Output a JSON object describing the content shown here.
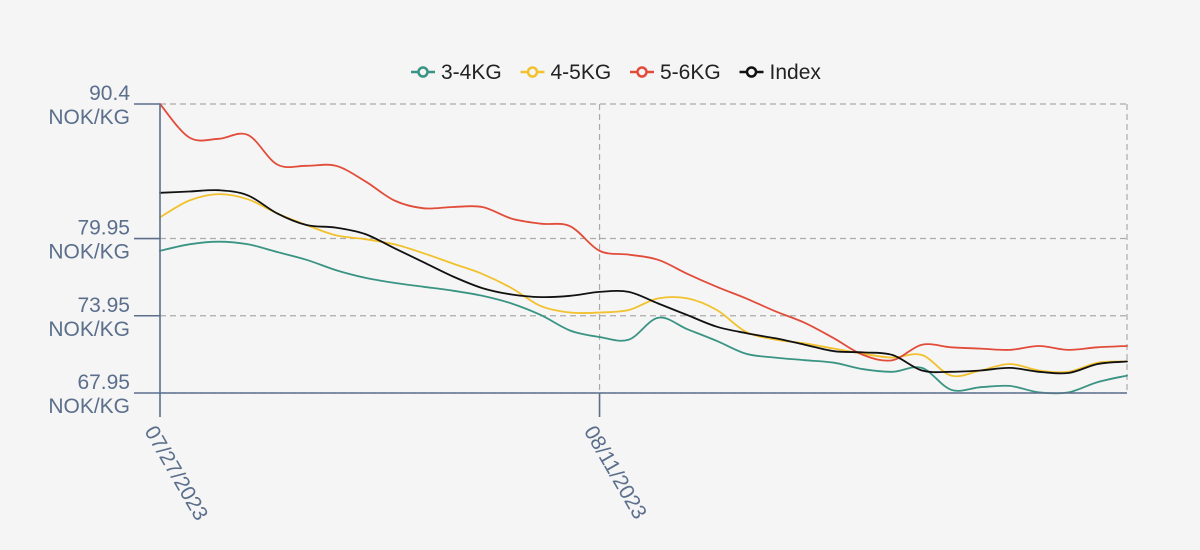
{
  "chart_data": {
    "type": "line",
    "x": [
      "07/27/2023",
      "07/28/2023",
      "07/29/2023",
      "07/30/2023",
      "07/31/2023",
      "08/01/2023",
      "08/02/2023",
      "08/03/2023",
      "08/04/2023",
      "08/05/2023",
      "08/06/2023",
      "08/07/2023",
      "08/08/2023",
      "08/09/2023",
      "08/10/2023",
      "08/11/2023",
      "08/12/2023",
      "08/13/2023",
      "08/14/2023",
      "08/15/2023",
      "08/16/2023",
      "08/17/2023",
      "08/18/2023",
      "08/19/2023",
      "08/20/2023",
      "08/21/2023",
      "08/22/2023",
      "08/23/2023",
      "08/24/2023",
      "08/25/2023",
      "08/26/2023",
      "08/27/2023",
      "08/28/2023",
      "08/29/2023"
    ],
    "x_ticks": [
      "07/27/2023",
      "08/11/2023"
    ],
    "y_ticks": [
      {
        "value": 90.4,
        "label": "90.4 NOK/KG"
      },
      {
        "value": 79.95,
        "label": "79.95 NOK/KG"
      },
      {
        "value": 73.95,
        "label": "73.95 NOK/KG"
      },
      {
        "value": 67.95,
        "label": "67.95 NOK/KG"
      }
    ],
    "ylim": [
      67.95,
      90.4
    ],
    "grid": true,
    "legend_position": "top-center",
    "series": [
      {
        "name": "3-4KG",
        "color": "#3a9484",
        "values": [
          79.0,
          79.5,
          79.7,
          79.5,
          78.9,
          78.3,
          77.5,
          76.9,
          76.5,
          76.2,
          75.9,
          75.5,
          74.9,
          74.0,
          72.8,
          72.3,
          72.1,
          73.8,
          72.9,
          72.0,
          71.0,
          70.7,
          70.5,
          70.3,
          69.8,
          69.6,
          69.9,
          68.2,
          68.4,
          68.5,
          68.0,
          68.0,
          68.8,
          69.3
        ]
      },
      {
        "name": "4-5KG",
        "color": "#f2c12e",
        "values": [
          81.6,
          82.9,
          83.4,
          83.0,
          81.9,
          81.0,
          80.2,
          79.9,
          79.5,
          78.8,
          78.0,
          77.2,
          76.1,
          74.7,
          74.2,
          74.2,
          74.4,
          75.3,
          75.3,
          74.4,
          72.7,
          72.1,
          71.8,
          71.4,
          71.0,
          70.7,
          70.9,
          69.3,
          69.7,
          70.2,
          69.7,
          69.6,
          70.3,
          70.4
        ]
      },
      {
        "name": "5-6KG",
        "color": "#e24c3a",
        "values": [
          90.4,
          87.8,
          87.7,
          88.0,
          85.7,
          85.6,
          85.6,
          84.4,
          82.9,
          82.3,
          82.4,
          82.4,
          81.5,
          81.1,
          80.9,
          79.0,
          78.7,
          78.3,
          77.2,
          76.2,
          75.3,
          74.3,
          73.4,
          72.2,
          70.9,
          70.5,
          71.7,
          71.5,
          71.4,
          71.3,
          71.6,
          71.3,
          71.5,
          71.6
        ]
      },
      {
        "name": "Index",
        "color": "#111111",
        "values": [
          83.5,
          83.6,
          83.7,
          83.3,
          81.9,
          81.0,
          80.8,
          80.3,
          79.2,
          78.1,
          77.0,
          76.1,
          75.6,
          75.4,
          75.5,
          75.8,
          75.8,
          74.9,
          74.0,
          73.1,
          72.6,
          72.2,
          71.7,
          71.2,
          71.1,
          70.9,
          69.7,
          69.6,
          69.7,
          69.9,
          69.6,
          69.5,
          70.2,
          70.4
        ]
      }
    ]
  }
}
